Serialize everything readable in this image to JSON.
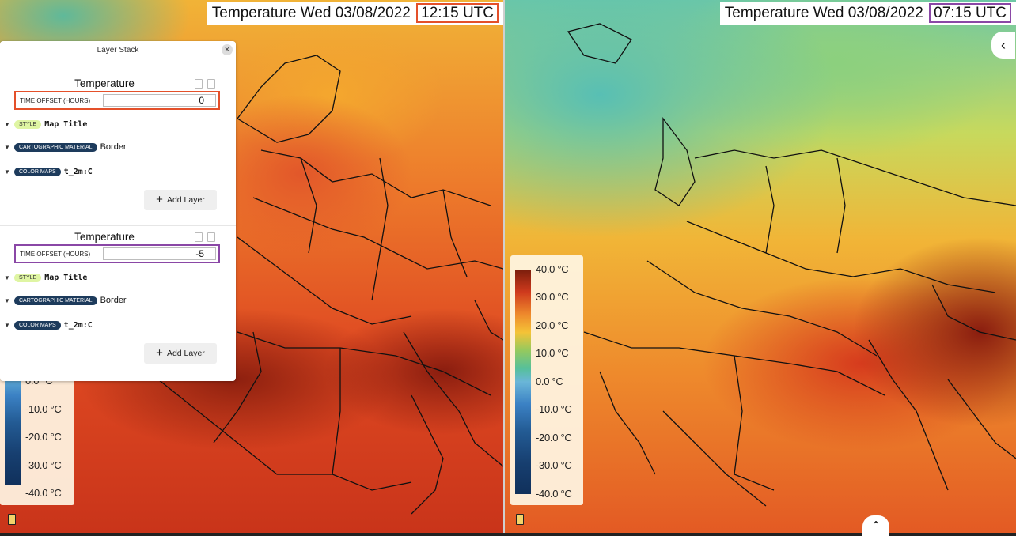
{
  "left_map": {
    "title_prefix": "Temperature Wed 03/08/2022",
    "title_time": "12:15 UTC"
  },
  "right_map": {
    "title_prefix": "Temperature Wed 03/08/2022",
    "title_time": "07:15 UTC"
  },
  "colors": {
    "left_highlight": "#e4502a",
    "right_highlight": "#8a47a6"
  },
  "legend": {
    "labels": [
      "40.0 °C",
      "30.0 °C",
      "20.0 °C",
      "10.0 °C",
      "0.0 °C",
      "-10.0 °C",
      "-20.0 °C",
      "-30.0 °C",
      "-40.0 °C"
    ],
    "left_visible_labels": [
      "0.0 °C",
      "-10.0 °C",
      "-20.0 °C",
      "-30.0 °C",
      "-40.0 °C"
    ]
  },
  "layer_stack": {
    "title": "Layer Stack",
    "close_icon": "close-icon",
    "layers": [
      {
        "name": "Temperature",
        "offset_label": "TIME OFFSET (HOURS)",
        "offset_value": "0",
        "style_tag": "STYLE",
        "style_value": "Map Title",
        "carto_tag": "CARTOGRAPHIC MATERIAL",
        "carto_value": "Border",
        "color_tag": "COLOR MAPS",
        "color_value": "t_2m:C",
        "add_layer": "Add Layer"
      },
      {
        "name": "Temperature",
        "offset_label": "TIME OFFSET (HOURS)",
        "offset_value": "-5",
        "style_tag": "STYLE",
        "style_value": "Map Title",
        "carto_tag": "CARTOGRAPHIC MATERIAL",
        "carto_value": "Border",
        "color_tag": "COLOR MAPS",
        "color_value": "t_2m:C",
        "add_layer": "Add Layer"
      }
    ]
  },
  "controls": {
    "collapse_icon": "chevron-left-icon",
    "expand_icon": "chevron-up-icon"
  }
}
